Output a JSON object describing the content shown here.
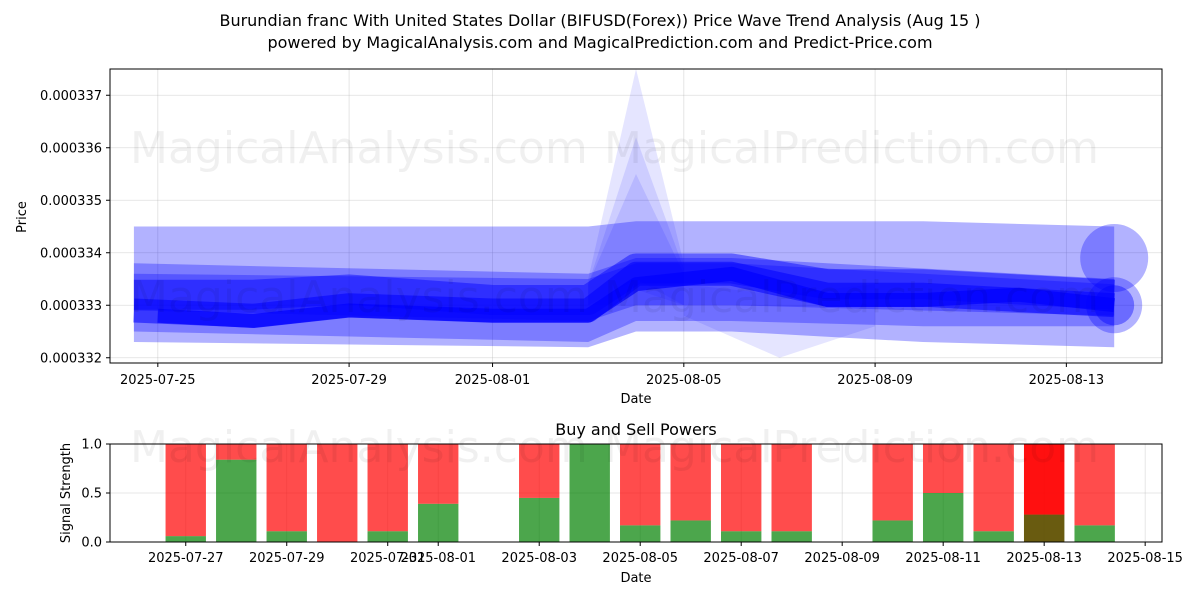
{
  "title_line1": "Burundian franc With United States Dollar (BIFUSD(Forex)) Price Wave Trend Analysis (Aug 15 )",
  "title_line2": "powered by MagicalAnalysis.com and MagicalPrediction.com and Predict-Price.com",
  "watermarks": [
    "MagicalAnalysis.com",
    "MagicalPrediction.com"
  ],
  "colors": {
    "band": "#0000ff",
    "buy": "#008000",
    "sell": "#ff0000"
  },
  "chart_data": [
    {
      "type": "area",
      "title": "",
      "xlabel": "Date",
      "ylabel": "Price",
      "xlim": [
        "2025-07-24",
        "2025-08-15"
      ],
      "ylim": [
        0.0003319,
        0.0003375
      ],
      "grid": true,
      "x_ticks": [
        "2025-07-25",
        "2025-07-29",
        "2025-08-01",
        "2025-08-05",
        "2025-08-09",
        "2025-08-13"
      ],
      "y_ticks": [
        "0.000332",
        "0.000333",
        "0.000334",
        "0.000335",
        "0.000336",
        "0.000337"
      ],
      "bands": [
        {
          "x": [
            "2025-07-24T12:00",
            "2025-08-03",
            "2025-08-04",
            "2025-08-06",
            "2025-08-10",
            "2025-08-14"
          ],
          "upper": [
            0.0003345,
            0.0003345,
            0.0003346,
            0.0003346,
            0.0003346,
            0.0003345
          ],
          "lower": [
            0.0003323,
            0.0003322,
            0.0003325,
            0.0003325,
            0.0003323,
            0.0003322
          ],
          "opacity": 0.3
        },
        {
          "x": [
            "2025-07-24T12:00",
            "2025-08-03",
            "2025-08-04",
            "2025-08-06",
            "2025-08-10",
            "2025-08-14"
          ],
          "upper": [
            0.0003338,
            0.0003336,
            0.0003339,
            0.0003339,
            0.0003337,
            0.0003335
          ],
          "lower": [
            0.0003325,
            0.0003323,
            0.0003327,
            0.0003327,
            0.0003326,
            0.0003326
          ],
          "opacity": 0.3
        },
        {
          "x": [
            "2025-07-24T12:00",
            "2025-08-03",
            "2025-08-04",
            "2025-08-06",
            "2025-08-10",
            "2025-08-14"
          ],
          "upper": [
            0.0003336,
            0.0003335,
            0.0003338,
            0.0003338,
            0.0003336,
            0.0003334
          ],
          "lower": [
            0.0003329,
            0.0003327,
            0.000333,
            0.000333,
            0.0003329,
            0.0003328
          ],
          "opacity": 0.3
        }
      ],
      "spikes": [
        {
          "x": [
            "2025-08-03",
            "2025-08-04",
            "2025-08-05"
          ],
          "upper": [
            0.0003335,
            0.0003375,
            0.0003338
          ],
          "lower": [
            0.000333,
            0.000333,
            0.000333
          ],
          "opacity": 0.1
        },
        {
          "x": [
            "2025-08-03",
            "2025-08-04",
            "2025-08-05"
          ],
          "upper": [
            0.0003334,
            0.0003362,
            0.0003337
          ],
          "lower": [
            0.000333,
            0.0003333,
            0.000333
          ],
          "opacity": 0.1
        },
        {
          "x": [
            "2025-08-03",
            "2025-08-04",
            "2025-08-05"
          ],
          "upper": [
            0.0003334,
            0.0003355,
            0.0003336
          ],
          "lower": [
            0.000333,
            0.0003335,
            0.000333
          ],
          "opacity": 0.1
        },
        {
          "x": [
            "2025-08-05",
            "2025-08-07",
            "2025-08-09"
          ],
          "upper": [
            0.0003334,
            0.0003332,
            0.0003334
          ],
          "lower": [
            0.0003328,
            0.000332,
            0.0003326
          ],
          "opacity": 0.1
        }
      ],
      "center_lines": [
        {
          "x": [
            "2025-07-24T12:00",
            "2025-07-27",
            "2025-07-29",
            "2025-08-01",
            "2025-08-03",
            "2025-08-04",
            "2025-08-06",
            "2025-08-08",
            "2025-08-10",
            "2025-08-12",
            "2025-08-14"
          ],
          "y": [
            0.0003332,
            0.0003332,
            0.0003333,
            0.0003331,
            0.0003331,
            0.0003337,
            0.0003337,
            0.0003334,
            0.0003334,
            0.0003333,
            0.0003332
          ],
          "width": 30,
          "opacity": 0.45
        },
        {
          "x": [
            "2025-07-24T12:00",
            "2025-07-27",
            "2025-07-29",
            "2025-08-01",
            "2025-08-03",
            "2025-08-04",
            "2025-08-06",
            "2025-08-08",
            "2025-08-10",
            "2025-08-12",
            "2025-08-14"
          ],
          "y": [
            0.0003329,
            0.0003328,
            0.000333,
            0.0003329,
            0.0003329,
            0.0003336,
            0.0003336,
            0.0003332,
            0.0003332,
            0.0003331,
            0.000333
          ],
          "width": 24,
          "opacity": 0.55
        },
        {
          "x": [
            "2025-07-25",
            "2025-07-27",
            "2025-07-29",
            "2025-08-01",
            "2025-08-03",
            "2025-08-04",
            "2025-08-06",
            "2025-08-08",
            "2025-08-10",
            "2025-08-12",
            "2025-08-14"
          ],
          "y": [
            0.0003328,
            0.0003327,
            0.0003329,
            0.0003328,
            0.0003328,
            0.0003334,
            0.0003336,
            0.0003331,
            0.0003331,
            0.0003332,
            0.000333
          ],
          "width": 14,
          "opacity": 0.7
        }
      ],
      "end_markers": [
        {
          "x": "2025-08-14",
          "y": 0.0003339,
          "size": 68,
          "opacity": 0.3
        },
        {
          "x": "2025-08-14",
          "y": 0.000333,
          "size": 56,
          "opacity": 0.3
        },
        {
          "x": "2025-08-14",
          "y": 0.000333,
          "size": 40,
          "opacity": 0.4
        }
      ]
    },
    {
      "type": "bar",
      "title": "Buy and Sell Powers",
      "xlabel": "Date",
      "ylabel": "Signal Strength",
      "xlim": [
        "2025-07-25T12:00",
        "2025-08-15T08:00"
      ],
      "ylim": [
        0,
        1
      ],
      "grid": true,
      "x_ticks": [
        "2025-07-27",
        "2025-07-29",
        "2025-07-31",
        "2025-08-01",
        "2025-08-03",
        "2025-08-05",
        "2025-08-07",
        "2025-08-09",
        "2025-08-11",
        "2025-08-13",
        "2025-08-15"
      ],
      "y_ticks": [
        "0.0",
        "0.5",
        "1.0"
      ],
      "categories": [
        "2025-07-27",
        "2025-07-28",
        "2025-07-29",
        "2025-07-30",
        "2025-07-31",
        "2025-08-01",
        "2025-08-03",
        "2025-08-04",
        "2025-08-05",
        "2025-08-06",
        "2025-08-07",
        "2025-08-08",
        "2025-08-10",
        "2025-08-11",
        "2025-08-12",
        "2025-08-13",
        "2025-08-14"
      ],
      "series": [
        {
          "name": "Buy",
          "values": [
            0.06,
            0.84,
            0.11,
            0.0,
            0.11,
            0.39,
            0.45,
            1.0,
            0.17,
            0.22,
            0.11,
            0.11,
            0.22,
            0.5,
            0.11,
            0.28,
            0.17
          ]
        },
        {
          "name": "Sell",
          "values": [
            0.94,
            0.16,
            0.89,
            1.0,
            0.89,
            0.61,
            0.55,
            0.0,
            0.83,
            0.78,
            0.89,
            0.89,
            0.78,
            0.5,
            0.89,
            0.72,
            0.83
          ]
        }
      ],
      "highlight_category": "2025-08-13"
    }
  ]
}
